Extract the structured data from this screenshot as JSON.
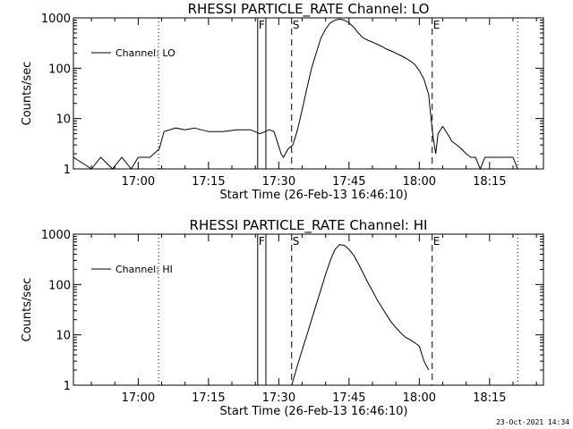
{
  "chart_data": [
    {
      "type": "line",
      "title": "RHESSI PARTICLE_RATE Channel: LO",
      "xlabel": "Start Time (26-Feb-13 16:46:10)",
      "ylabel": "Counts/sec",
      "yscale": "log",
      "xlim": [
        "16:46:10",
        "18:26:30"
      ],
      "ylim": [
        1,
        1000
      ],
      "x_ticks": [
        "17:00",
        "17:15",
        "17:30",
        "17:45",
        "18:00",
        "18:15"
      ],
      "y_ticks": [
        "1",
        "10",
        "100",
        "1000"
      ],
      "legend": {
        "label": "Channel: LO",
        "position": "top-left"
      },
      "grid": false,
      "event_markers": [
        {
          "time": "17:25:30",
          "style": "solid",
          "label": "F"
        },
        {
          "time": "17:27:15",
          "style": "solid",
          "label": ""
        },
        {
          "time": "17:32:45",
          "style": "dashed",
          "label": "S"
        },
        {
          "time": "18:02:45",
          "style": "dashed",
          "label": "E"
        }
      ],
      "dotted_lines": [
        "17:04:20",
        "18:21:00"
      ],
      "series": [
        {
          "name": "Channel: LO",
          "x": [
            "16:46:10",
            "16:50:00",
            "16:52:00",
            "16:54:30",
            "16:56:30",
            "16:58:30",
            "17:00:00",
            "17:02:30",
            "17:04:30",
            "17:05:30",
            "17:08:00",
            "17:10:00",
            "17:12:00",
            "17:15:00",
            "17:18:00",
            "17:21:00",
            "17:24:00",
            "17:26:00",
            "17:28:00",
            "17:29:00",
            "17:30:30",
            "17:31:00",
            "17:32:00",
            "17:33:00",
            "17:34:00",
            "17:35:00",
            "17:36:00",
            "17:37:00",
            "17:38:00",
            "17:39:00",
            "17:40:00",
            "17:41:00",
            "17:42:00",
            "17:43:00",
            "17:44:00",
            "17:45:00",
            "17:46:00",
            "17:47:00",
            "17:48:00",
            "17:49:00",
            "17:50:00",
            "17:51:00",
            "17:52:00",
            "17:53:00",
            "17:54:00",
            "17:55:00",
            "17:56:00",
            "17:57:00",
            "17:58:00",
            "17:59:00",
            "18:00:00",
            "18:01:00",
            "18:02:00",
            "18:02:30",
            "18:03:00",
            "18:03:30",
            "18:04:00",
            "18:05:00",
            "18:06:00",
            "18:07:00",
            "18:08:00",
            "18:09:00",
            "18:10:00",
            "18:11:00",
            "18:12:00",
            "18:13:00",
            "18:14:00",
            "18:15:00",
            "18:16:00",
            "18:17:00",
            "18:18:00",
            "18:19:00",
            "18:20:00",
            "18:21:00"
          ],
          "y": [
            1.7,
            1.0,
            1.7,
            1.0,
            1.7,
            1.0,
            1.7,
            1.7,
            2.5,
            5.5,
            6.5,
            6.0,
            6.5,
            5.5,
            5.5,
            6.0,
            6.0,
            5.0,
            6.0,
            5.5,
            2.0,
            1.7,
            2.5,
            3.0,
            6.0,
            15,
            40,
            100,
            200,
            400,
            600,
            800,
            900,
            950,
            900,
            800,
            650,
            500,
            400,
            360,
            330,
            300,
            270,
            240,
            220,
            200,
            180,
            160,
            140,
            120,
            90,
            60,
            30,
            10,
            4.0,
            2.0,
            5.0,
            7.0,
            5.0,
            3.5,
            3.0,
            2.5,
            2.0,
            1.7,
            1.7,
            1.0,
            1.7,
            1.7,
            1.7,
            1.7,
            1.7,
            1.7,
            1.7,
            1.0
          ]
        }
      ]
    },
    {
      "type": "line",
      "title": "RHESSI PARTICLE_RATE Channel: HI",
      "xlabel": "Start Time (26-Feb-13 16:46:10)",
      "ylabel": "Counts/sec",
      "yscale": "log",
      "xlim": [
        "16:46:10",
        "18:26:30"
      ],
      "ylim": [
        1,
        1000
      ],
      "x_ticks": [
        "17:00",
        "17:15",
        "17:30",
        "17:45",
        "18:00",
        "18:15"
      ],
      "y_ticks": [
        "1",
        "10",
        "100",
        "1000"
      ],
      "legend": {
        "label": "Channel: HI",
        "position": "top-left"
      },
      "grid": false,
      "event_markers": [
        {
          "time": "17:25:30",
          "style": "solid",
          "label": "F"
        },
        {
          "time": "17:27:15",
          "style": "solid",
          "label": ""
        },
        {
          "time": "17:32:45",
          "style": "dashed",
          "label": "S"
        },
        {
          "time": "18:02:45",
          "style": "dashed",
          "label": "E"
        }
      ],
      "dotted_lines": [
        "17:04:20",
        "18:21:00"
      ],
      "series": [
        {
          "name": "Channel: HI",
          "x": [
            "17:32:45",
            "17:34:00",
            "17:35:00",
            "17:36:00",
            "17:37:00",
            "17:38:00",
            "17:39:00",
            "17:40:00",
            "17:41:00",
            "17:42:00",
            "17:43:00",
            "17:44:00",
            "17:45:00",
            "17:46:00",
            "17:47:00",
            "17:48:00",
            "17:49:00",
            "17:50:00",
            "17:51:00",
            "17:52:00",
            "17:53:00",
            "17:54:00",
            "17:55:00",
            "17:56:00",
            "17:57:00",
            "17:58:00",
            "17:59:00",
            "18:00:00",
            "18:01:00",
            "18:02:00"
          ],
          "y": [
            1.0,
            2.5,
            5,
            10,
            20,
            40,
            80,
            160,
            300,
            500,
            620,
            600,
            500,
            380,
            260,
            170,
            110,
            75,
            50,
            35,
            25,
            18,
            14,
            11,
            9,
            8,
            7,
            6,
            3,
            2
          ]
        }
      ]
    }
  ],
  "timestamp": "23-Oct-2021 14:34"
}
